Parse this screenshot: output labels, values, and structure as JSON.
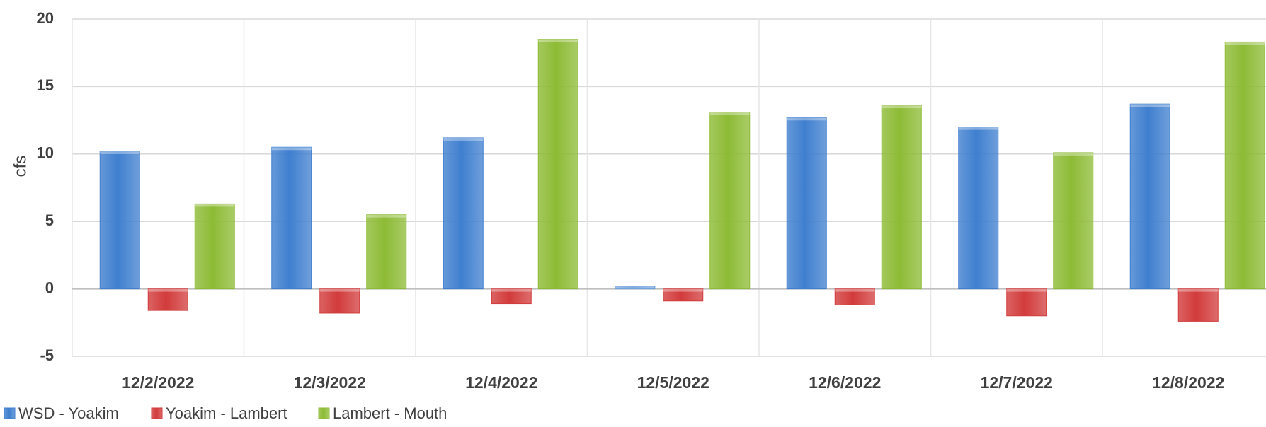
{
  "chart_data": {
    "type": "bar",
    "categories": [
      "12/2/2022",
      "12/3/2022",
      "12/4/2022",
      "12/5/2022",
      "12/6/2022",
      "12/7/2022",
      "12/8/2022"
    ],
    "series": [
      {
        "name": "WSD - Yoakim",
        "color": "#3F7FCF",
        "values": [
          10.2,
          10.5,
          11.2,
          0.2,
          12.7,
          12.0,
          13.7
        ]
      },
      {
        "name": "Yoakim - Lambert",
        "color": "#D23B3B",
        "values": [
          -1.6,
          -1.8,
          -1.1,
          -0.9,
          -1.2,
          -2.0,
          -2.4
        ]
      },
      {
        "name": "Lambert - Mouth",
        "color": "#8DBB35",
        "values": [
          6.3,
          5.5,
          18.5,
          13.1,
          13.6,
          10.1,
          18.3
        ]
      }
    ],
    "xlabel": "",
    "ylabel": "cfs",
    "ylim": [
      -5,
      20
    ],
    "yticks": [
      "20",
      "15",
      "10",
      "5",
      "0",
      "-5"
    ],
    "grid": true,
    "legend": "bottom-left"
  }
}
